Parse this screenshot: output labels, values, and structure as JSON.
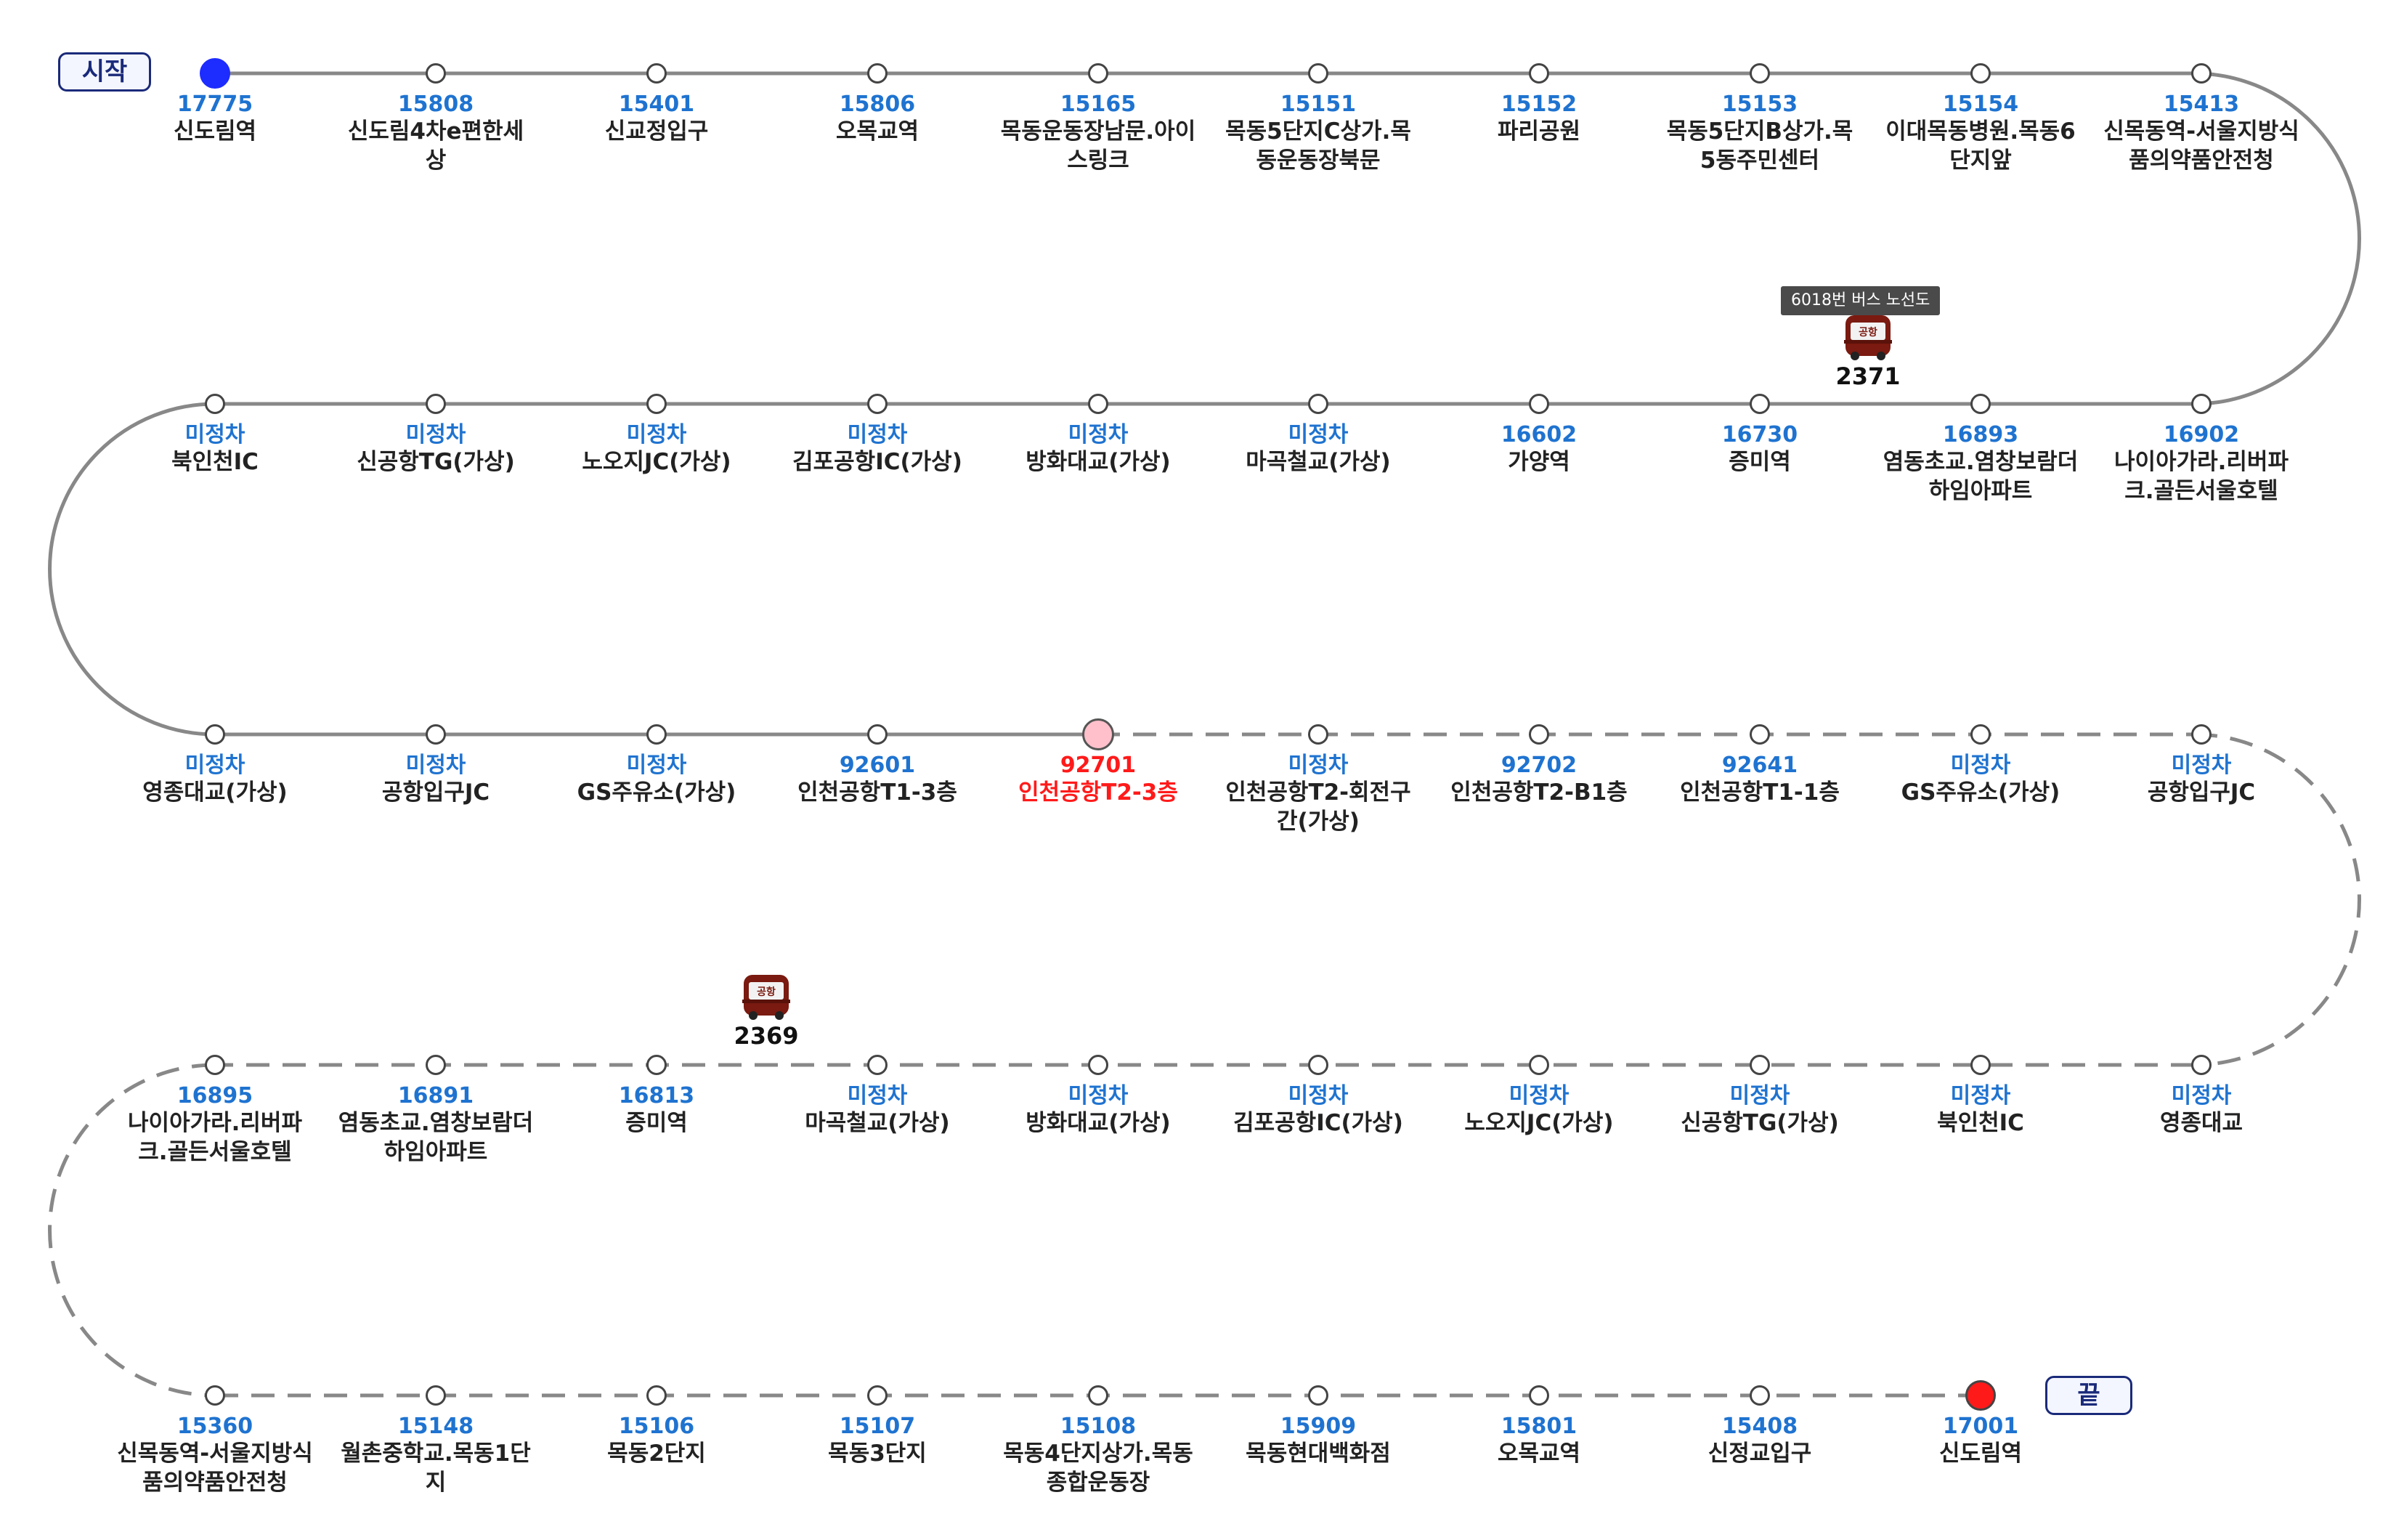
{
  "route": {
    "start_label": "시작",
    "end_label": "끝",
    "line_color": "#888888",
    "stop_id_color": "#1f73d0",
    "current_color": "#ff1a1a"
  },
  "tooltip": "6018번 버스 노선도",
  "buses": [
    {
      "number": "2371",
      "icon": "airport-bus-icon",
      "icon_text": "공항"
    },
    {
      "number": "2369",
      "icon": "airport-bus-icon",
      "icon_text": "공항"
    }
  ],
  "stations": [
    {
      "id": "17775",
      "name": "신도림역"
    },
    {
      "id": "15808",
      "name": "신도림4차e편한세상"
    },
    {
      "id": "15401",
      "name": "신교정입구"
    },
    {
      "id": "15806",
      "name": "오목교역"
    },
    {
      "id": "15165",
      "name": "목동운동장남문.아이스링크"
    },
    {
      "id": "15151",
      "name": "목동5단지C상가.목동운동장북문"
    },
    {
      "id": "15152",
      "name": "파리공원"
    },
    {
      "id": "15153",
      "name": "목동5단지B상가.목5동주민센터"
    },
    {
      "id": "15154",
      "name": "이대목동병원.목동6단지앞"
    },
    {
      "id": "15413",
      "name": "신목동역-서울지방식품의약품안전청"
    },
    {
      "id": "16902",
      "name": "나이아가라.리버파크.골든서울호텔"
    },
    {
      "id": "16893",
      "name": "염동초교.염창보람더하임아파트"
    },
    {
      "id": "16730",
      "name": "증미역"
    },
    {
      "id": "16602",
      "name": "가양역"
    },
    {
      "id": "미정차",
      "name": "마곡철교(가상)"
    },
    {
      "id": "미정차",
      "name": "방화대교(가상)"
    },
    {
      "id": "미정차",
      "name": "김포공항IC(가상)"
    },
    {
      "id": "미정차",
      "name": "노오지JC(가상)"
    },
    {
      "id": "미정차",
      "name": "신공항TG(가상)"
    },
    {
      "id": "미정차",
      "name": "북인천IC"
    },
    {
      "id": "미정차",
      "name": "영종대교(가상)"
    },
    {
      "id": "미정차",
      "name": "공항입구JC"
    },
    {
      "id": "미정차",
      "name": "GS주유소(가상)"
    },
    {
      "id": "92601",
      "name": "인천공항T1-3층"
    },
    {
      "id": "92701",
      "name": "인천공항T2-3층"
    },
    {
      "id": "미정차",
      "name": "인천공항T2-회전구간(가상)"
    },
    {
      "id": "92702",
      "name": "인천공항T2-B1층"
    },
    {
      "id": "92641",
      "name": "인천공항T1-1층"
    },
    {
      "id": "미정차",
      "name": "GS주유소(가상)"
    },
    {
      "id": "미정차",
      "name": "공항입구JC"
    },
    {
      "id": "미정차",
      "name": "영종대교"
    },
    {
      "id": "미정차",
      "name": "북인천IC"
    },
    {
      "id": "미정차",
      "name": "신공항TG(가상)"
    },
    {
      "id": "미정차",
      "name": "노오지JC(가상)"
    },
    {
      "id": "미정차",
      "name": "김포공항IC(가상)"
    },
    {
      "id": "미정차",
      "name": "방화대교(가상)"
    },
    {
      "id": "미정차",
      "name": "마곡철교(가상)"
    },
    {
      "id": "16813",
      "name": "증미역"
    },
    {
      "id": "16891",
      "name": "염동초교.염창보람더하임아파트"
    },
    {
      "id": "16895",
      "name": "나이아가라.리버파크.골든서울호텔"
    },
    {
      "id": "15360",
      "name": "신목동역-서울지방식품의약품안전청"
    },
    {
      "id": "15148",
      "name": "월촌중학교.목동1단지"
    },
    {
      "id": "15106",
      "name": "목동2단지"
    },
    {
      "id": "15107",
      "name": "목동3단지"
    },
    {
      "id": "15108",
      "name": "목동4단지상가.목동종합운동장"
    },
    {
      "id": "15909",
      "name": "목동현대백화점"
    },
    {
      "id": "15801",
      "name": "오목교역"
    },
    {
      "id": "15408",
      "name": "신정교입구"
    },
    {
      "id": "17001",
      "name": "신도림역"
    }
  ]
}
